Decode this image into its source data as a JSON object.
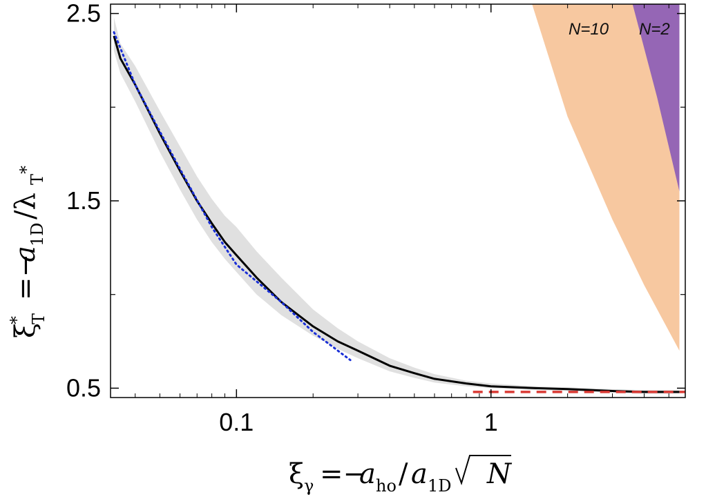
{
  "chart_data": {
    "type": "line",
    "title": "",
    "xlabel": "ξγ = −aho / a1D √N",
    "ylabel": "ξT* = −a1D / λT*",
    "xscale": "log",
    "xlim": [
      0.032,
      5.8
    ],
    "ylim": [
      0.45,
      2.55
    ],
    "xtick_labels": [
      "0.1",
      "1"
    ],
    "xticks": [
      0.1,
      1
    ],
    "ytick_labels": [
      "0.5",
      "1.5",
      "2.5"
    ],
    "yticks": [
      0.5,
      1.5,
      2.5
    ],
    "yticks_minor": [
      1.0,
      2.0
    ],
    "grid": false,
    "series": [
      {
        "role": "main",
        "color": "#000000",
        "x": [
          0.033,
          0.035,
          0.04,
          0.05,
          0.06,
          0.07,
          0.08,
          0.09,
          0.1,
          0.12,
          0.15,
          0.2,
          0.25,
          0.3,
          0.4,
          0.5,
          0.6,
          0.8,
          1.0,
          1.5,
          2.0,
          3.0,
          4.0,
          5.5
        ],
        "y": [
          2.38,
          2.26,
          2.12,
          1.86,
          1.66,
          1.5,
          1.38,
          1.28,
          1.21,
          1.09,
          0.96,
          0.83,
          0.75,
          0.7,
          0.62,
          0.58,
          0.55,
          0.525,
          0.51,
          0.5,
          0.495,
          0.485,
          0.48,
          0.48
        ]
      },
      {
        "role": "uncertainty-band",
        "color": "#e0e0e0",
        "x": [
          0.033,
          0.035,
          0.04,
          0.05,
          0.06,
          0.07,
          0.08,
          0.09,
          0.1,
          0.12,
          0.15,
          0.2,
          0.25,
          0.3,
          0.4,
          0.5,
          0.6,
          0.8,
          1.0,
          1.5,
          2.0,
          3.0,
          4.0,
          5.5
        ],
        "upper": [
          2.48,
          2.34,
          2.22,
          1.98,
          1.79,
          1.63,
          1.51,
          1.42,
          1.36,
          1.23,
          1.09,
          0.92,
          0.82,
          0.75,
          0.66,
          0.61,
          0.575,
          0.54,
          0.525,
          0.51,
          0.505,
          0.495,
          0.49,
          0.49
        ],
        "lower": [
          2.3,
          2.18,
          2.03,
          1.76,
          1.56,
          1.4,
          1.28,
          1.19,
          1.12,
          1.0,
          0.89,
          0.78,
          0.71,
          0.66,
          0.59,
          0.555,
          0.53,
          0.51,
          0.5,
          0.49,
          0.485,
          0.475,
          0.47,
          0.47
        ]
      },
      {
        "role": "asymptote-small",
        "style": "dotted",
        "color": "#1a2fd6",
        "x": [
          0.033,
          0.04,
          0.05,
          0.06,
          0.08,
          0.1,
          0.15,
          0.2,
          0.28
        ],
        "y": [
          2.4,
          2.12,
          1.87,
          1.67,
          1.36,
          1.16,
          0.96,
          0.8,
          0.65
        ]
      },
      {
        "role": "asymptote-large",
        "style": "dashed",
        "color": "#d93a34",
        "x": [
          0.85,
          5.8
        ],
        "y": [
          0.48,
          0.48
        ]
      }
    ],
    "bands": [
      {
        "name": "N=10",
        "color": "#f7c8a0",
        "x": [
          1.45,
          2.0,
          3.0,
          4.0,
          5.5
        ],
        "upper": [
          2.55,
          2.55,
          2.55,
          2.55,
          2.55
        ],
        "lower": [
          2.55,
          1.95,
          1.4,
          1.05,
          0.7
        ]
      },
      {
        "name": "N=2",
        "color": "#9566b5",
        "x": [
          3.6,
          4.5,
          5.5
        ],
        "upper": [
          2.55,
          2.55,
          2.55
        ],
        "lower": [
          2.55,
          2.05,
          1.55
        ]
      }
    ]
  }
}
